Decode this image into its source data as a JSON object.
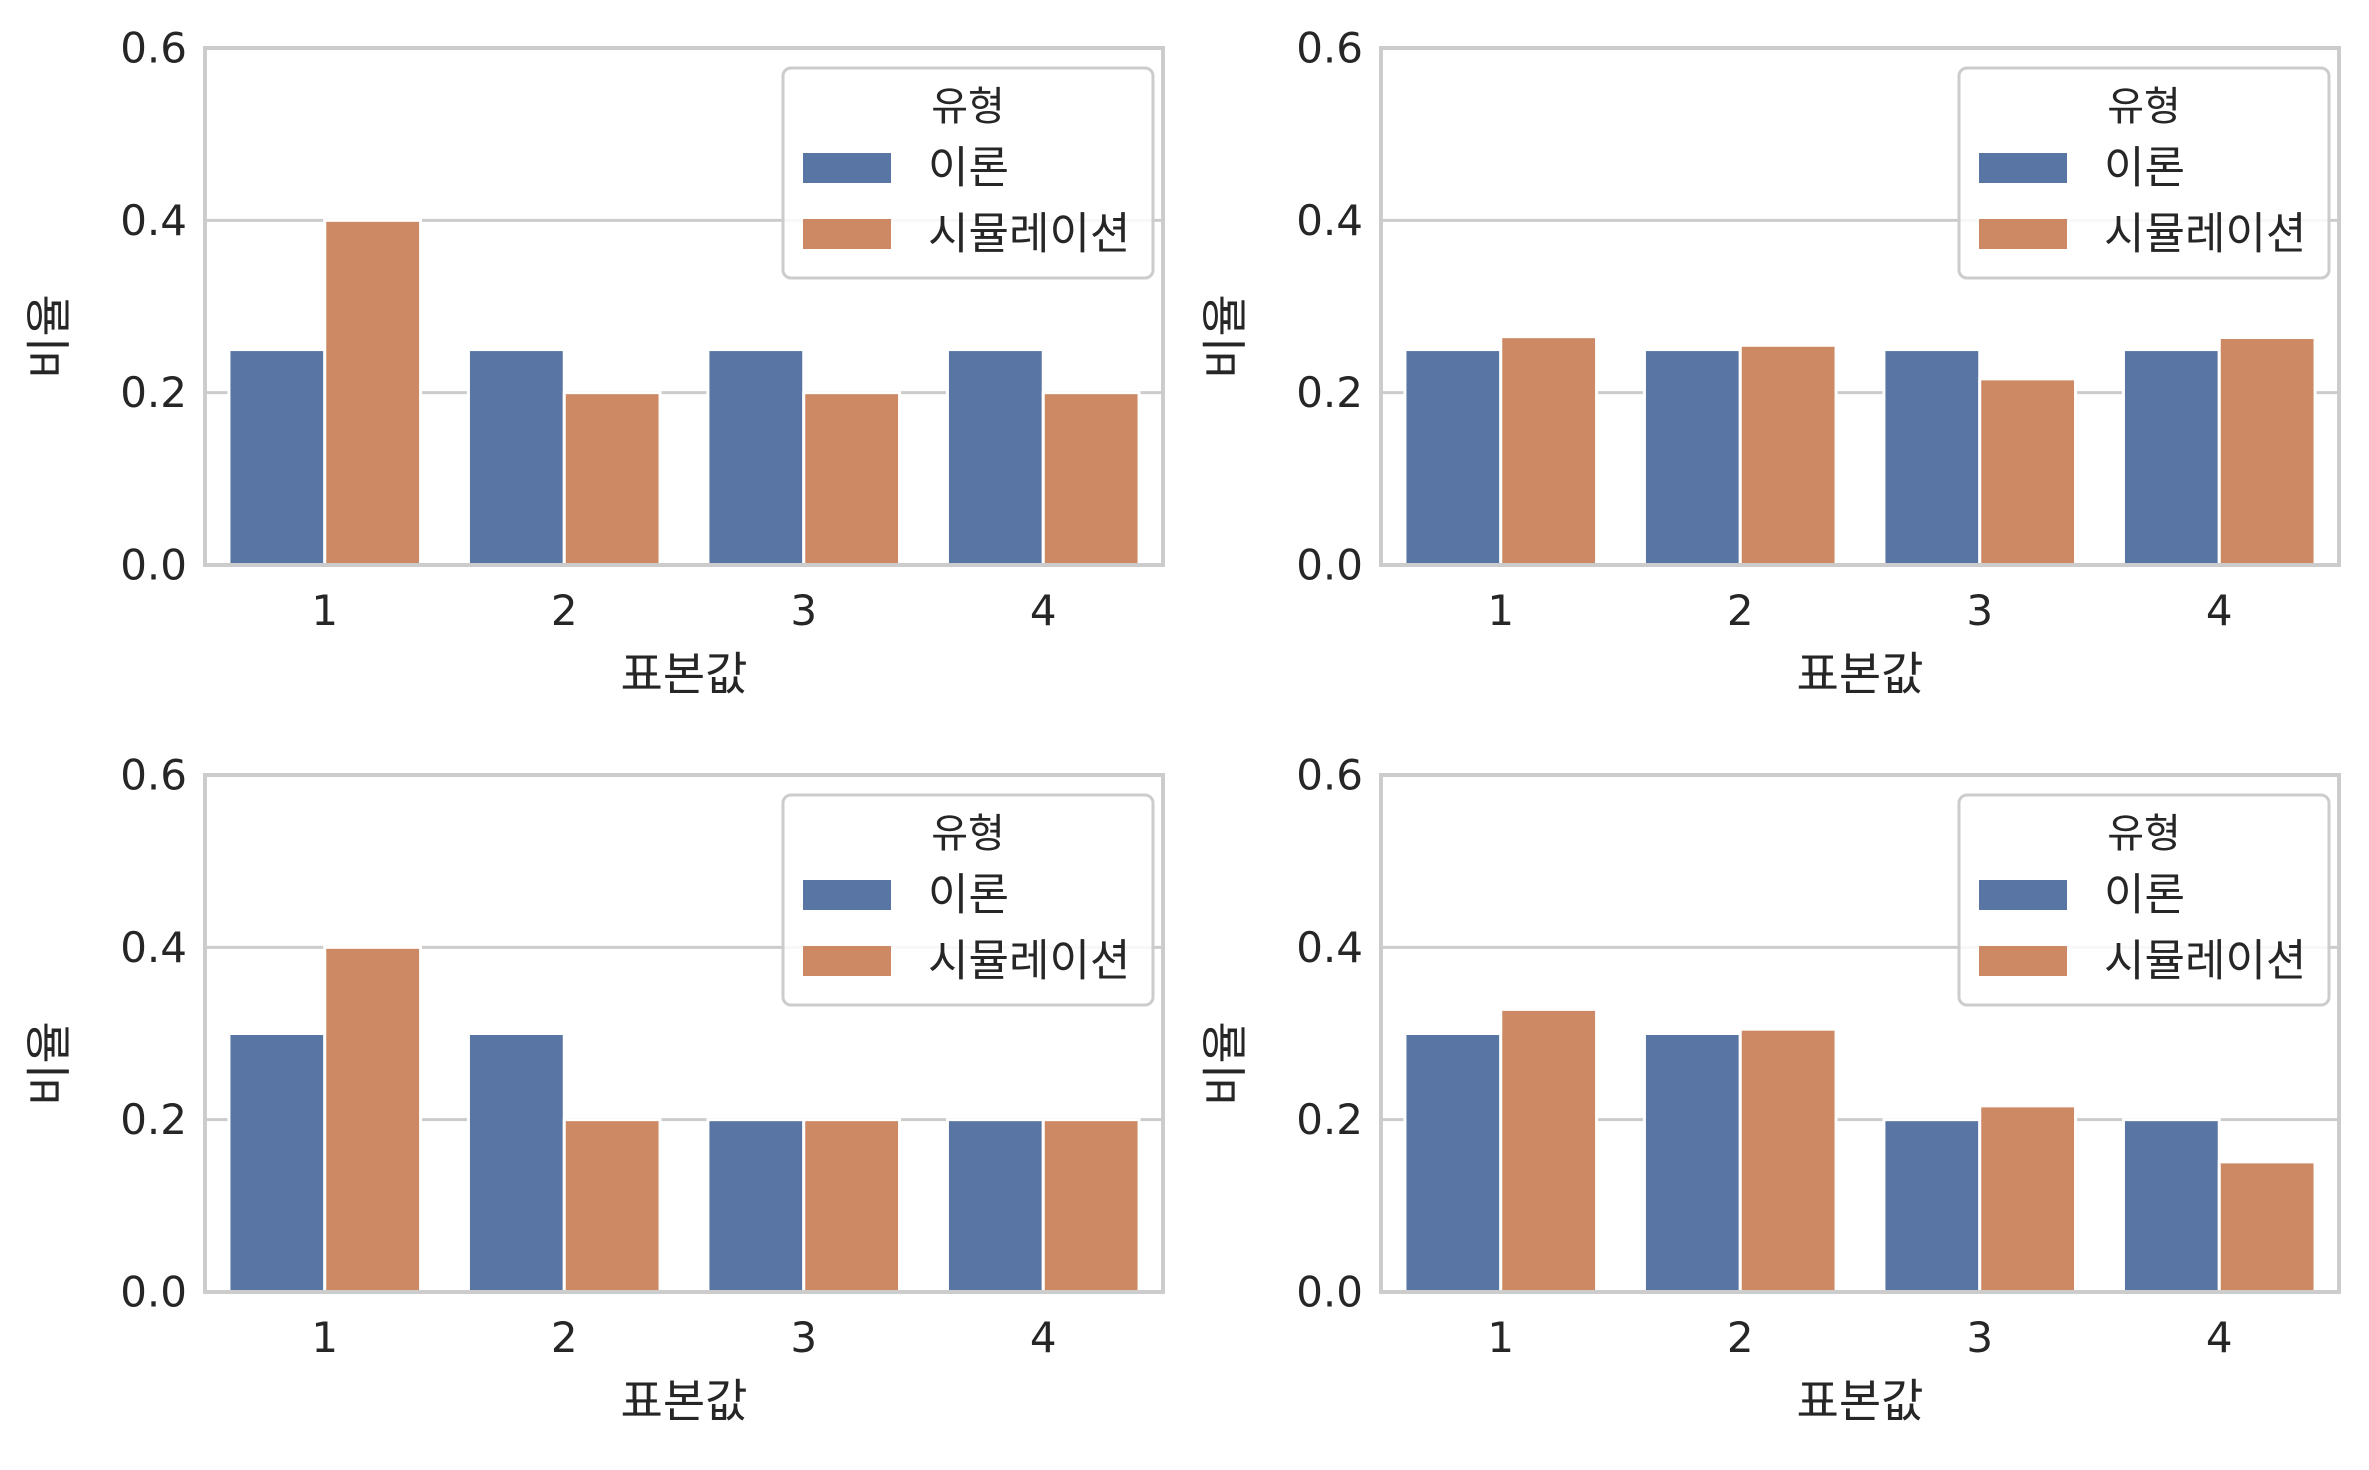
{
  "style": {
    "series_colors": [
      "#5975a4",
      "#cc8963"
    ],
    "grid_color": "#cccccc",
    "frame_color": "#cccccc",
    "background": "#ffffff"
  },
  "chart_data": [
    {
      "type": "bar",
      "categories": [
        "1",
        "2",
        "3",
        "4"
      ],
      "xlabel": "표본값",
      "ylabel": "비율",
      "ylim": [
        0,
        0.6
      ],
      "yticks": [
        "0.0",
        "0.2",
        "0.4",
        "0.6"
      ],
      "grid": "y",
      "legend": {
        "title": "유형",
        "placement": "top-right"
      },
      "series": [
        {
          "name": "이론",
          "values": [
            0.25,
            0.25,
            0.25,
            0.25
          ]
        },
        {
          "name": "시뮬레이션",
          "values": [
            0.4,
            0.2,
            0.2,
            0.2
          ]
        }
      ]
    },
    {
      "type": "bar",
      "categories": [
        "1",
        "2",
        "3",
        "4"
      ],
      "xlabel": "표본값",
      "ylabel": "비율",
      "ylim": [
        0,
        0.6
      ],
      "yticks": [
        "0.0",
        "0.2",
        "0.4",
        "0.6"
      ],
      "grid": "y",
      "legend": {
        "title": "유형",
        "placement": "top-right"
      },
      "series": [
        {
          "name": "이론",
          "values": [
            0.25,
            0.25,
            0.25,
            0.25
          ]
        },
        {
          "name": "시뮬레이션",
          "values": [
            0.265,
            0.255,
            0.216,
            0.264
          ]
        }
      ]
    },
    {
      "type": "bar",
      "categories": [
        "1",
        "2",
        "3",
        "4"
      ],
      "xlabel": "표본값",
      "ylabel": "비율",
      "ylim": [
        0,
        0.6
      ],
      "yticks": [
        "0.0",
        "0.2",
        "0.4",
        "0.6"
      ],
      "grid": "y",
      "legend": {
        "title": "유형",
        "placement": "top-right"
      },
      "series": [
        {
          "name": "이론",
          "values": [
            0.3,
            0.3,
            0.2,
            0.2
          ]
        },
        {
          "name": "시뮬레이션",
          "values": [
            0.4,
            0.2,
            0.2,
            0.2
          ]
        }
      ]
    },
    {
      "type": "bar",
      "categories": [
        "1",
        "2",
        "3",
        "4"
      ],
      "xlabel": "표본값",
      "ylabel": "비율",
      "ylim": [
        0,
        0.6
      ],
      "yticks": [
        "0.0",
        "0.2",
        "0.4",
        "0.6"
      ],
      "grid": "y",
      "legend": {
        "title": "유형",
        "placement": "top-right"
      },
      "series": [
        {
          "name": "이론",
          "values": [
            0.3,
            0.3,
            0.2,
            0.2
          ]
        },
        {
          "name": "시뮬레이션",
          "values": [
            0.328,
            0.305,
            0.216,
            0.151
          ]
        }
      ]
    }
  ]
}
